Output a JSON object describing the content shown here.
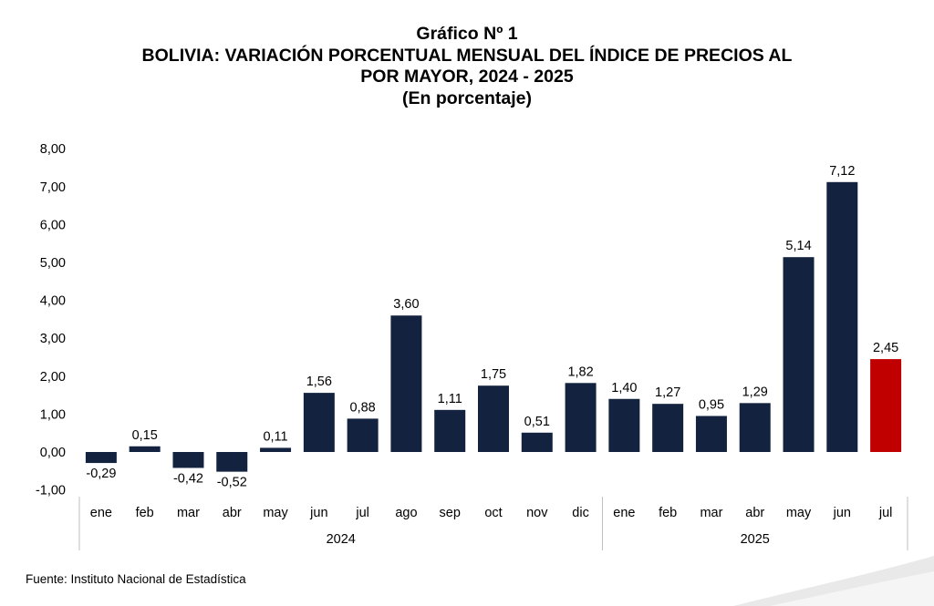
{
  "header": {
    "chart_number": "Gráfico Nº 1",
    "title_line1": "BOLIVIA: VARIACIÓN PORCENTUAL MENSUAL DEL ÍNDICE DE PRECIOS AL",
    "title_line2": "POR MAYOR, 2024 - 2025",
    "subtitle": "(En porcentaje)"
  },
  "footer": {
    "source": "Fuente: Instituto Nacional de Estadística"
  },
  "colors": {
    "bar": "#13233f",
    "highlight_bar": "#c00000",
    "axis": "#bfbfbf"
  },
  "chart_data": {
    "type": "bar",
    "title": "BOLIVIA: VARIACIÓN PORCENTUAL MENSUAL DEL ÍNDICE DE PRECIOS AL POR MAYOR, 2024 - 2025",
    "subtitle": "(En porcentaje)",
    "xlabel": "",
    "ylabel": "",
    "ylim": [
      -1,
      8
    ],
    "yticks": [
      "-1,00",
      "0,00",
      "1,00",
      "2,00",
      "3,00",
      "4,00",
      "5,00",
      "6,00",
      "7,00",
      "8,00"
    ],
    "grid": false,
    "categories": [
      "ene",
      "feb",
      "mar",
      "abr",
      "may",
      "jun",
      "jul",
      "ago",
      "sep",
      "oct",
      "nov",
      "dic",
      "ene",
      "feb",
      "mar",
      "abr",
      "may",
      "jun",
      "jul"
    ],
    "groups": [
      {
        "label": "2024",
        "count": 12
      },
      {
        "label": "2025",
        "count": 7
      }
    ],
    "values": [
      -0.29,
      0.15,
      -0.42,
      -0.52,
      0.11,
      1.56,
      0.88,
      3.6,
      1.11,
      1.75,
      0.51,
      1.82,
      1.4,
      1.27,
      0.95,
      1.29,
      5.14,
      7.12,
      2.45
    ],
    "value_labels": [
      "-0,29",
      "0,15",
      "-0,42",
      "-0,52",
      "0,11",
      "1,56",
      "0,88",
      "3,60",
      "1,11",
      "1,75",
      "0,51",
      "1,82",
      "1,40",
      "1,27",
      "0,95",
      "1,29",
      "5,14",
      "7,12",
      "2,45"
    ],
    "highlight_index": 18
  }
}
